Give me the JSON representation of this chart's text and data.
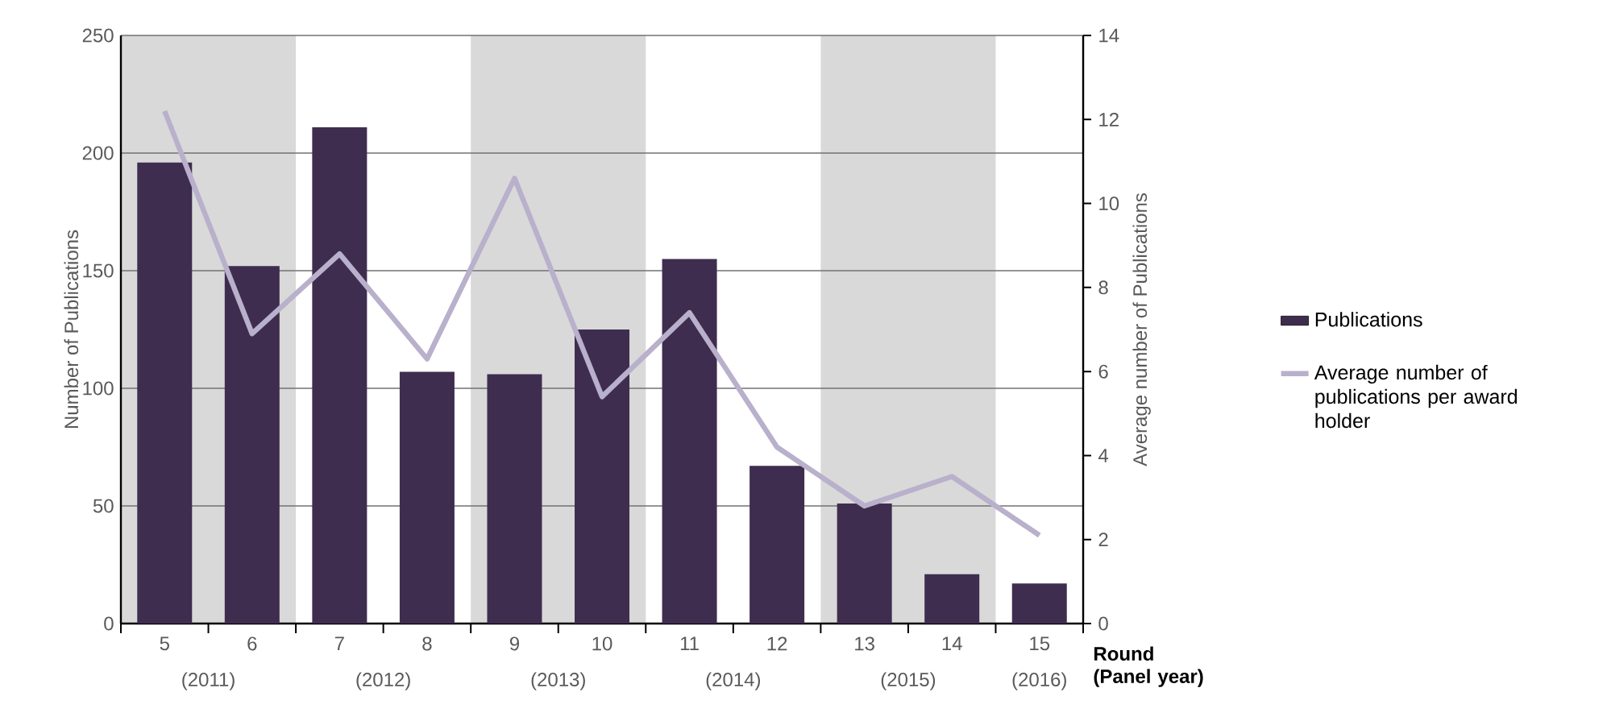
{
  "chart_data": {
    "type": "bar",
    "x": [
      5,
      6,
      7,
      8,
      9,
      10,
      11,
      12,
      13,
      14,
      15
    ],
    "series": [
      {
        "name": "Publications",
        "color": "#3f2d4f",
        "values": [
          196,
          152,
          211,
          107,
          106,
          125,
          155,
          67,
          51,
          21,
          17
        ]
      },
      {
        "name": "Average number of publications per award holder",
        "type": "line",
        "axis": "y2",
        "color": "#b9b0cc",
        "values": [
          12.2,
          6.9,
          8.8,
          6.3,
          10.6,
          5.4,
          7.4,
          4.2,
          2.8,
          3.5,
          2.1
        ]
      }
    ],
    "xlabel": "Round (Panel year)",
    "ylabel": "Number of Publications",
    "y2label": "Average number of Publications",
    "xlim": [
      4.5,
      15.5
    ],
    "xticks": [
      5,
      6,
      7,
      8,
      9,
      10,
      11,
      12,
      13,
      14,
      15,
      {
        "value": 4.5,
        "label": null
      },
      {
        "value": 5.5,
        "label": null
      },
      {
        "value": 6.5,
        "label": null
      },
      {
        "value": 7.5,
        "label": null
      },
      {
        "value": 8.5,
        "label": null
      },
      {
        "value": 9.5,
        "label": null
      },
      {
        "value": 10.5,
        "label": null
      },
      {
        "value": 11.5,
        "label": null
      },
      {
        "value": 12.5,
        "label": null
      },
      {
        "value": 13.5,
        "label": null
      },
      {
        "value": 14.5,
        "label": null
      },
      {
        "value": 15.5,
        "label": null
      }
    ],
    "ylim": [
      0,
      250
    ],
    "yticks": [
      0,
      50,
      100,
      150,
      200,
      250
    ],
    "y2lim": [
      0,
      14
    ],
    "y2ticks": [
      0,
      2,
      4,
      6,
      8,
      10,
      12,
      14
    ],
    "bands": [
      {
        "axis": "x",
        "from": 4.5,
        "to": 6.5,
        "label": "(2011)",
        "color": "#d9d9d9"
      },
      {
        "axis": "x",
        "from": 8.5,
        "to": 10.5,
        "label": "(2013)",
        "color": "#d9d9d9"
      },
      {
        "axis": "x",
        "from": 12.5,
        "to": 14.5,
        "label": "(2015)",
        "color": "#d9d9d9"
      }
    ],
    "annotations": [
      "(2012)",
      "(2014)",
      "(2016)"
    ],
    "grid": "y",
    "legend": "right"
  }
}
